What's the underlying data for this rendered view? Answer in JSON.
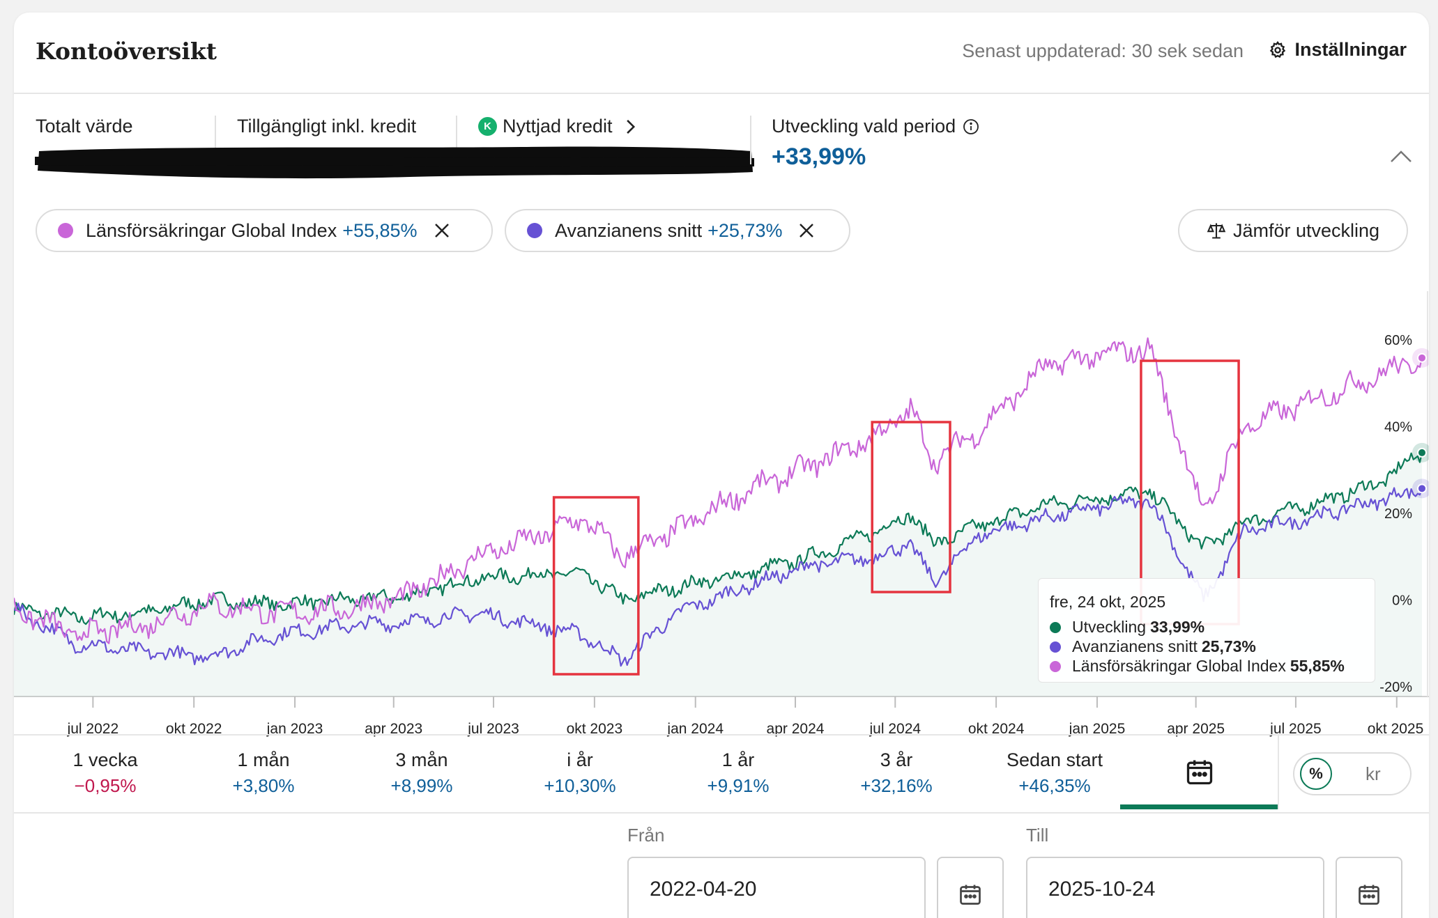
{
  "header": {
    "title": "Kontoöversikt",
    "updated": "Senast uppdaterad: 30 sek sedan",
    "settings_label": "Inställningar"
  },
  "summary": {
    "total_label": "Totalt värde",
    "available_label": "Tillgängligt inkl. kredit",
    "credit_badge": "K",
    "credit_label": "Nyttjad kredit",
    "perf_label": "Utveckling vald period",
    "perf_value": "+33,99%"
  },
  "compare_chips": [
    {
      "name": "Länsförsäkringar Global Index",
      "value": "+55,85%",
      "color": "#c966d8"
    },
    {
      "name": "Avanzianens snitt",
      "value": "+25,73%",
      "color": "#6651d4"
    }
  ],
  "compare_button": "Jämför utveckling",
  "chart_data": {
    "type": "line",
    "x": [
      "2022-04-20",
      "2022-06",
      "2022-08",
      "2022-10",
      "2022-12",
      "2023-02",
      "2023-04",
      "2023-06",
      "2023-08",
      "2023-09-20",
      "2023-10-27",
      "2023-12",
      "2024-02",
      "2024-04",
      "2024-06",
      "2024-07-15",
      "2024-08-05",
      "2024-09",
      "2024-11",
      "2025-01",
      "2025-02-18",
      "2025-04-08",
      "2025-05",
      "2025-07",
      "2025-09",
      "2025-10-24"
    ],
    "series": [
      {
        "name": "Utveckling",
        "color": "#0c7a57",
        "values": [
          -2,
          -4,
          -3,
          0,
          -1,
          0,
          1,
          5,
          6,
          6,
          0,
          3,
          6,
          10,
          16,
          20,
          13,
          17,
          22,
          24,
          25,
          12,
          18,
          22,
          27,
          33.99
        ]
      },
      {
        "name": "Avanzianens snitt",
        "color": "#6651d4",
        "values": [
          -2,
          -10,
          -12,
          -13,
          -8,
          -6,
          -5,
          -3,
          -6,
          -8,
          -14,
          -3,
          3,
          8,
          10,
          13,
          4,
          15,
          19,
          22,
          23,
          0,
          16,
          19,
          23,
          25.73
        ]
      },
      {
        "name": "Länsförsäkringar Global Index",
        "color": "#c966d8",
        "values": [
          -2,
          -8,
          -6,
          -1,
          -3,
          -2,
          1,
          10,
          15,
          19,
          10,
          16,
          25,
          31,
          38,
          44,
          32,
          39,
          54,
          57,
          58,
          20,
          40,
          46,
          52,
          55.85
        ]
      }
    ],
    "y_ticks": [
      "60%",
      "40%",
      "20%",
      "0%",
      "-20%"
    ],
    "ylim": [
      -20,
      60
    ],
    "x_ticks": [
      "jul 2022",
      "okt 2022",
      "jan 2023",
      "apr 2023",
      "jul 2023",
      "okt 2023",
      "jan 2024",
      "apr 2024",
      "jul 2024",
      "okt 2024",
      "jan 2025",
      "apr 2025",
      "jul 2025",
      "okt 2025"
    ],
    "highlight_boxes": [
      [
        "2023-08-25",
        "2023-11-10"
      ],
      [
        "2024-06-10",
        "2024-08-20"
      ],
      [
        "2025-02-10",
        "2025-05-10"
      ]
    ],
    "tooltip": {
      "date": "fre, 24 okt, 2025",
      "rows": [
        {
          "label": "Utveckling",
          "value": "33,99%",
          "color": "#0c7a57"
        },
        {
          "label": "Avanzianens snitt",
          "value": "25,73%",
          "color": "#6651d4"
        },
        {
          "label": "Länsförsäkringar Global Index",
          "value": "55,85%",
          "color": "#c966d8"
        }
      ]
    }
  },
  "periods": [
    {
      "label": "1 vecka",
      "value": "−0,95%",
      "negative": true
    },
    {
      "label": "1 mån",
      "value": "+3,80%"
    },
    {
      "label": "3 mån",
      "value": "+8,99%"
    },
    {
      "label": "i år",
      "value": "+10,30%"
    },
    {
      "label": "1 år",
      "value": "+9,91%"
    },
    {
      "label": "3 år",
      "value": "+32,16%"
    },
    {
      "label": "Sedan start",
      "value": "+46,35%"
    }
  ],
  "unit_toggle": {
    "percent": "%",
    "kr": "kr",
    "selected": "%"
  },
  "date_range": {
    "from_label": "Från",
    "from_value": "2022-04-20",
    "to_label": "Till",
    "to_value": "2025-10-24"
  }
}
